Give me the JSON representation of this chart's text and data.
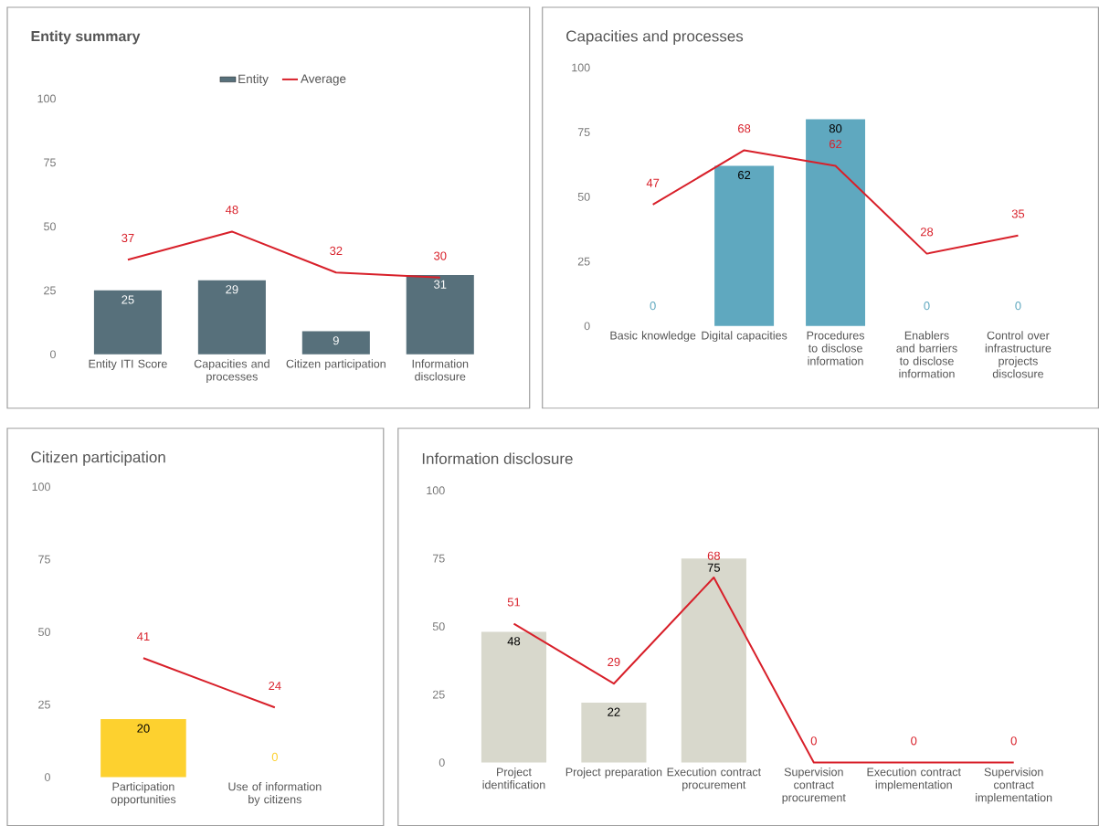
{
  "chart_data": [
    {
      "type": "bar",
      "title": "Entity summary",
      "categories": [
        "Entity ITI Score",
        "Capacities and processes",
        "Citizen participation",
        "Information disclosure"
      ],
      "series": [
        {
          "name": "Entity",
          "type": "bar",
          "color": "#57707b",
          "values": [
            25,
            29,
            9,
            31
          ]
        },
        {
          "name": "Average",
          "type": "line",
          "color": "#d8202a",
          "values": [
            37,
            48,
            32,
            30
          ]
        }
      ],
      "ylim": [
        0,
        100
      ],
      "yticks": [
        0,
        25,
        50,
        75,
        100
      ],
      "data_labels": true,
      "legend": "top"
    },
    {
      "type": "bar",
      "title": "Capacities and processes",
      "categories": [
        "Basic knowledge",
        "Digital capacities",
        "Procedures to disclose information",
        "Enablers and barriers to disclose information",
        "Control over infrastructure projects disclosure"
      ],
      "series": [
        {
          "type": "bar",
          "color": "#5fa8bf",
          "values": [
            0,
            62,
            80,
            0,
            0
          ]
        },
        {
          "type": "line",
          "color": "#d8202a",
          "values": [
            47,
            68,
            62,
            28,
            35
          ]
        }
      ],
      "ylim": [
        0,
        100
      ],
      "yticks": [
        0,
        25,
        50,
        75,
        100
      ],
      "data_labels": true
    },
    {
      "type": "bar",
      "title": "Citizen participation",
      "categories": [
        "Participation opportunities",
        "Use of information by citizens"
      ],
      "series": [
        {
          "type": "bar",
          "color": "#fdd12f",
          "values": [
            20,
            0
          ]
        },
        {
          "type": "line",
          "color": "#d8202a",
          "values": [
            41,
            24
          ]
        }
      ],
      "ylim": [
        0,
        100
      ],
      "yticks": [
        0,
        25,
        50,
        75,
        100
      ],
      "data_labels": true
    },
    {
      "type": "bar",
      "title": "Information disclosure",
      "categories": [
        "Project identification",
        "Project preparation",
        "Execution contract procurement",
        "Supervision contract procurement",
        "Execution contract implementation",
        "Supervision contract implementation"
      ],
      "series": [
        {
          "type": "bar",
          "color": "#d8d8cc",
          "values": [
            48,
            22,
            75,
            null,
            null,
            null
          ]
        },
        {
          "type": "line",
          "color": "#d8202a",
          "values": [
            51,
            29,
            68,
            0,
            0,
            0
          ]
        }
      ],
      "ylim": [
        0,
        100
      ],
      "yticks": [
        0,
        25,
        50,
        75,
        100
      ],
      "data_labels": true
    }
  ]
}
